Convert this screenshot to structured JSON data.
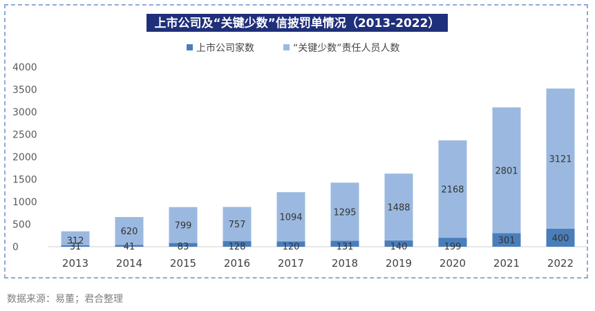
{
  "chart_data": {
    "type": "bar",
    "stacked": true,
    "title": "上市公司及“关键少数”信披罚单情况（2013-2022）",
    "categories": [
      "2013",
      "2014",
      "2015",
      "2016",
      "2017",
      "2018",
      "2019",
      "2020",
      "2021",
      "2022"
    ],
    "series": [
      {
        "name": "上市公司家数",
        "color": "#4a7ebb",
        "values": [
          31,
          41,
          83,
          128,
          120,
          131,
          140,
          199,
          301,
          400
        ]
      },
      {
        "name": "“关键少数”责任人员人数",
        "color": "#9bb9e0",
        "values": [
          312,
          620,
          799,
          757,
          1094,
          1295,
          1488,
          2168,
          2801,
          3121
        ]
      }
    ],
    "ylim": [
      0,
      4000
    ],
    "yticks": [
      "0",
      "500",
      "1000",
      "1500",
      "2000",
      "2500",
      "3000",
      "3500",
      "4000"
    ],
    "legend_position": "top-center",
    "grid": false
  },
  "source_note": "数据来源：易董；君合整理"
}
